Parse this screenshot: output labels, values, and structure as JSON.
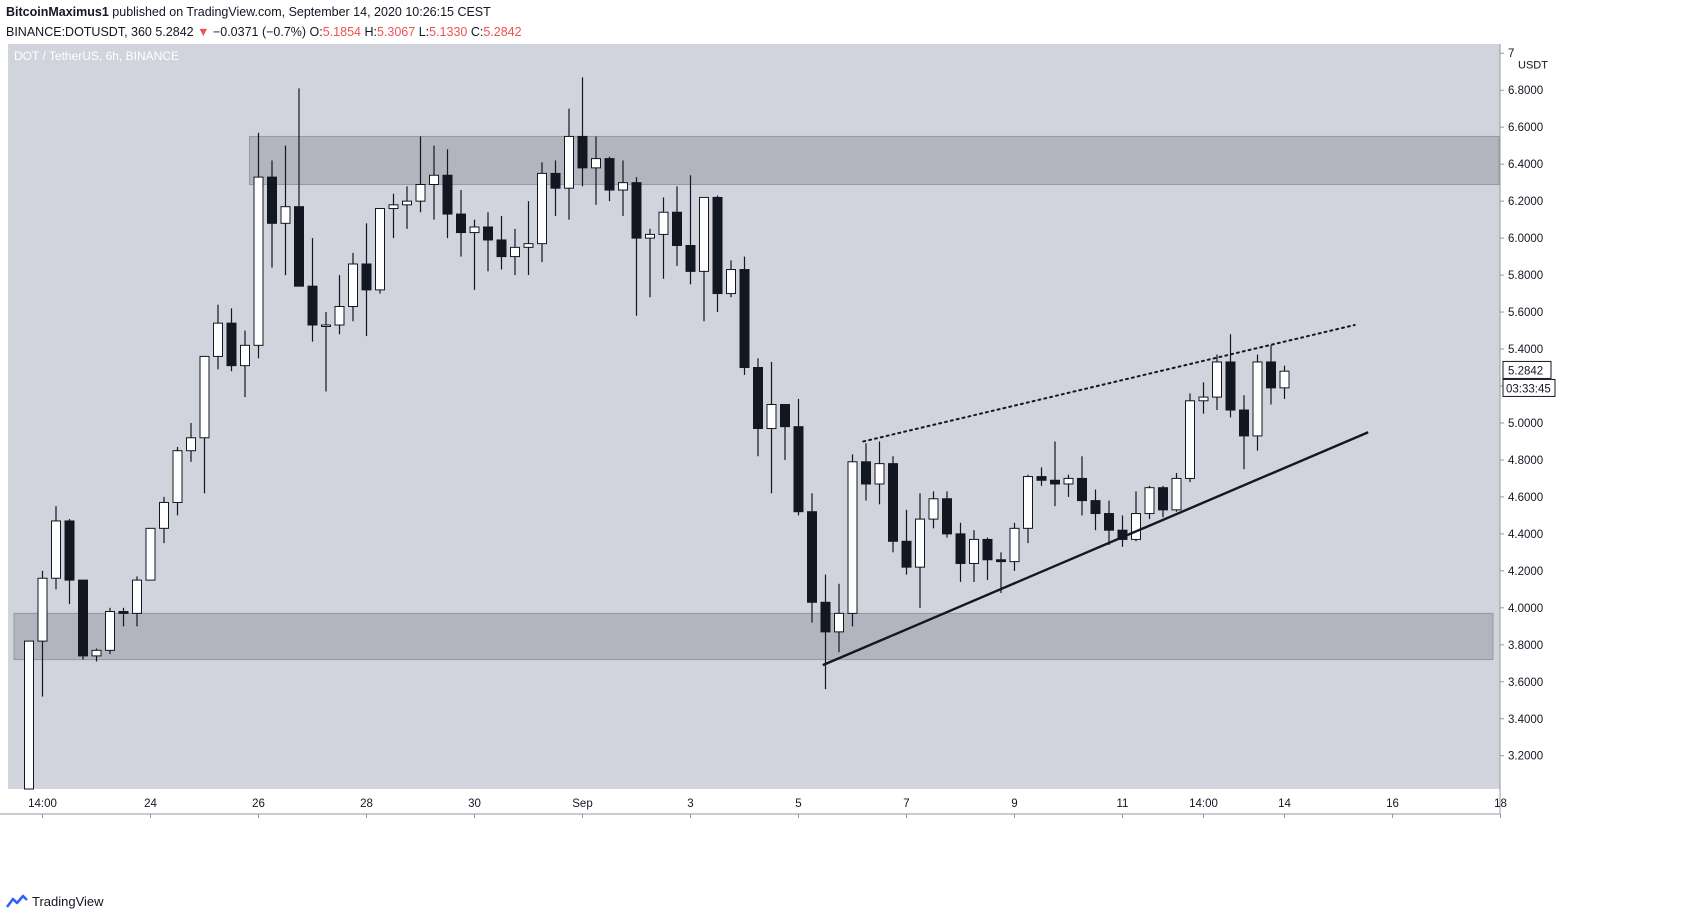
{
  "header": {
    "publisher": "BitcoinMaximus1",
    "published_text": "published on TradingView.com, September 14, 2020 10:26:15 CEST",
    "symbol": "BINANCE:DOTUSDT, 360",
    "last_price": "5.2842",
    "change_arrow": "▼",
    "change": "−0.0371 (−0.7%)",
    "o_label": "O:",
    "o_value": "5.1854",
    "h_label": "H:",
    "h_value": "5.3067",
    "l_label": "L:",
    "l_value": "5.1330",
    "c_label": "C:",
    "c_value": "5.2842"
  },
  "legend_title": "DOT / TetherUS, 6h, BINANCE",
  "footer": {
    "brand": "TradingView"
  },
  "colors": {
    "pane_bg": "#d1d4dc",
    "zone": "#b2b5be",
    "up_body": "#ffffff",
    "down_body": "#131722",
    "wick": "#131722",
    "neg": "#ef5350",
    "brand": "#2962ff"
  },
  "chart_data": {
    "type": "candlestick",
    "timeframe": "6h",
    "y_unit": "USDT",
    "ylim": [
      3.02,
      7.05
    ],
    "y_ticks": [
      "7",
      "6.8000",
      "6.6000",
      "6.4000",
      "6.2000",
      "6.0000",
      "5.8000",
      "5.6000",
      "5.4000",
      "5.2000",
      "5.0000",
      "4.8000",
      "4.6000",
      "4.4000",
      "4.2000",
      "4.0000",
      "3.8000",
      "3.6000",
      "3.4000",
      "3.2000"
    ],
    "x_ticks": [
      {
        "label": "14:00",
        "index": 1
      },
      {
        "label": "24",
        "index": 9
      },
      {
        "label": "26",
        "index": 17
      },
      {
        "label": "28",
        "index": 25
      },
      {
        "label": "30",
        "index": 33
      },
      {
        "label": "Sep",
        "index": 41
      },
      {
        "label": "3",
        "index": 49
      },
      {
        "label": "5",
        "index": 57
      },
      {
        "label": "7",
        "index": 65
      },
      {
        "label": "9",
        "index": 73
      },
      {
        "label": "11",
        "index": 81
      },
      {
        "label": "14:00",
        "index": 87
      },
      {
        "label": "14",
        "index": 93
      },
      {
        "label": "16",
        "index": 101
      },
      {
        "label": "18",
        "index": 109
      }
    ],
    "candles": [
      {
        "o": 3.02,
        "h": 3.82,
        "l": 3.02,
        "c": 3.82
      },
      {
        "o": 3.82,
        "h": 4.2,
        "l": 3.52,
        "c": 4.16
      },
      {
        "o": 4.16,
        "h": 4.55,
        "l": 4.1,
        "c": 4.47
      },
      {
        "o": 4.47,
        "h": 4.48,
        "l": 4.02,
        "c": 4.15
      },
      {
        "o": 4.15,
        "h": 4.15,
        "l": 3.72,
        "c": 3.74
      },
      {
        "o": 3.74,
        "h": 3.78,
        "l": 3.71,
        "c": 3.77
      },
      {
        "o": 3.77,
        "h": 4.0,
        "l": 3.75,
        "c": 3.98
      },
      {
        "o": 3.98,
        "h": 4.0,
        "l": 3.9,
        "c": 3.97
      },
      {
        "o": 3.97,
        "h": 4.17,
        "l": 3.9,
        "c": 4.15
      },
      {
        "o": 4.15,
        "h": 4.43,
        "l": 4.15,
        "c": 4.43
      },
      {
        "o": 4.43,
        "h": 4.6,
        "l": 4.35,
        "c": 4.57
      },
      {
        "o": 4.57,
        "h": 4.87,
        "l": 4.5,
        "c": 4.85
      },
      {
        "o": 4.85,
        "h": 5.0,
        "l": 4.79,
        "c": 4.92
      },
      {
        "o": 4.92,
        "h": 5.36,
        "l": 4.62,
        "c": 5.36
      },
      {
        "o": 5.36,
        "h": 5.64,
        "l": 5.29,
        "c": 5.54
      },
      {
        "o": 5.54,
        "h": 5.62,
        "l": 5.28,
        "c": 5.31
      },
      {
        "o": 5.31,
        "h": 5.5,
        "l": 5.14,
        "c": 5.42
      },
      {
        "o": 5.42,
        "h": 6.57,
        "l": 5.35,
        "c": 6.33
      },
      {
        "o": 6.33,
        "h": 6.42,
        "l": 5.84,
        "c": 6.08
      },
      {
        "o": 6.08,
        "h": 6.5,
        "l": 5.8,
        "c": 6.17
      },
      {
        "o": 6.17,
        "h": 6.81,
        "l": 5.74,
        "c": 5.74
      },
      {
        "o": 5.74,
        "h": 6.0,
        "l": 5.44,
        "c": 5.53
      },
      {
        "o": 5.53,
        "h": 5.6,
        "l": 5.17,
        "c": 5.53
      },
      {
        "o": 5.53,
        "h": 5.8,
        "l": 5.48,
        "c": 5.63
      },
      {
        "o": 5.63,
        "h": 5.92,
        "l": 5.55,
        "c": 5.86
      },
      {
        "o": 5.86,
        "h": 6.08,
        "l": 5.47,
        "c": 5.72
      },
      {
        "o": 5.72,
        "h": 6.16,
        "l": 5.7,
        "c": 6.16
      },
      {
        "o": 6.16,
        "h": 6.24,
        "l": 6.0,
        "c": 6.18
      },
      {
        "o": 6.18,
        "h": 6.28,
        "l": 6.05,
        "c": 6.2
      },
      {
        "o": 6.2,
        "h": 6.55,
        "l": 6.14,
        "c": 6.29
      },
      {
        "o": 6.29,
        "h": 6.5,
        "l": 6.1,
        "c": 6.34
      },
      {
        "o": 6.34,
        "h": 6.48,
        "l": 6.0,
        "c": 6.13
      },
      {
        "o": 6.13,
        "h": 6.26,
        "l": 5.9,
        "c": 6.03
      },
      {
        "o": 6.03,
        "h": 6.1,
        "l": 5.72,
        "c": 6.06
      },
      {
        "o": 6.06,
        "h": 6.14,
        "l": 5.82,
        "c": 5.99
      },
      {
        "o": 5.99,
        "h": 6.12,
        "l": 5.83,
        "c": 5.9
      },
      {
        "o": 5.9,
        "h": 6.05,
        "l": 5.8,
        "c": 5.95
      },
      {
        "o": 5.95,
        "h": 6.2,
        "l": 5.8,
        "c": 5.97
      },
      {
        "o": 5.97,
        "h": 6.41,
        "l": 5.87,
        "c": 6.35
      },
      {
        "o": 6.35,
        "h": 6.42,
        "l": 6.12,
        "c": 6.27
      },
      {
        "o": 6.27,
        "h": 6.7,
        "l": 6.1,
        "c": 6.55
      },
      {
        "o": 6.55,
        "h": 6.87,
        "l": 6.28,
        "c": 6.38
      },
      {
        "o": 6.38,
        "h": 6.55,
        "l": 6.18,
        "c": 6.43
      },
      {
        "o": 6.43,
        "h": 6.44,
        "l": 6.2,
        "c": 6.26
      },
      {
        "o": 6.26,
        "h": 6.42,
        "l": 6.12,
        "c": 6.3
      },
      {
        "o": 6.3,
        "h": 6.33,
        "l": 5.58,
        "c": 6.0
      },
      {
        "o": 6.0,
        "h": 6.05,
        "l": 5.68,
        "c": 6.02
      },
      {
        "o": 6.02,
        "h": 6.22,
        "l": 5.78,
        "c": 6.14
      },
      {
        "o": 6.14,
        "h": 6.28,
        "l": 5.85,
        "c": 5.96
      },
      {
        "o": 5.96,
        "h": 6.34,
        "l": 5.75,
        "c": 5.82
      },
      {
        "o": 5.82,
        "h": 6.22,
        "l": 5.55,
        "c": 6.22
      },
      {
        "o": 6.22,
        "h": 6.23,
        "l": 5.6,
        "c": 5.7
      },
      {
        "o": 5.7,
        "h": 5.88,
        "l": 5.68,
        "c": 5.83
      },
      {
        "o": 5.83,
        "h": 5.9,
        "l": 5.26,
        "c": 5.3
      },
      {
        "o": 5.3,
        "h": 5.35,
        "l": 4.82,
        "c": 4.97
      },
      {
        "o": 4.97,
        "h": 5.33,
        "l": 4.62,
        "c": 5.1
      },
      {
        "o": 5.1,
        "h": 5.1,
        "l": 4.8,
        "c": 4.98
      },
      {
        "o": 4.98,
        "h": 5.13,
        "l": 4.5,
        "c": 4.52
      },
      {
        "o": 4.52,
        "h": 4.62,
        "l": 3.92,
        "c": 4.03
      },
      {
        "o": 4.03,
        "h": 4.18,
        "l": 3.56,
        "c": 3.87
      },
      {
        "o": 3.87,
        "h": 4.13,
        "l": 3.76,
        "c": 3.97
      },
      {
        "o": 3.97,
        "h": 4.83,
        "l": 3.9,
        "c": 4.79
      },
      {
        "o": 4.79,
        "h": 4.89,
        "l": 4.58,
        "c": 4.67
      },
      {
        "o": 4.67,
        "h": 4.9,
        "l": 4.56,
        "c": 4.78
      },
      {
        "o": 4.78,
        "h": 4.82,
        "l": 4.3,
        "c": 4.36
      },
      {
        "o": 4.36,
        "h": 4.53,
        "l": 4.18,
        "c": 4.22
      },
      {
        "o": 4.22,
        "h": 4.62,
        "l": 4.0,
        "c": 4.48
      },
      {
        "o": 4.48,
        "h": 4.63,
        "l": 4.43,
        "c": 4.59
      },
      {
        "o": 4.59,
        "h": 4.63,
        "l": 4.38,
        "c": 4.4
      },
      {
        "o": 4.4,
        "h": 4.46,
        "l": 4.14,
        "c": 4.24
      },
      {
        "o": 4.24,
        "h": 4.42,
        "l": 4.14,
        "c": 4.37
      },
      {
        "o": 4.37,
        "h": 4.38,
        "l": 4.15,
        "c": 4.26
      },
      {
        "o": 4.26,
        "h": 4.3,
        "l": 4.08,
        "c": 4.25
      },
      {
        "o": 4.25,
        "h": 4.46,
        "l": 4.2,
        "c": 4.43
      },
      {
        "o": 4.43,
        "h": 4.72,
        "l": 4.35,
        "c": 4.71
      },
      {
        "o": 4.71,
        "h": 4.76,
        "l": 4.66,
        "c": 4.69
      },
      {
        "o": 4.69,
        "h": 4.9,
        "l": 4.55,
        "c": 4.67
      },
      {
        "o": 4.67,
        "h": 4.72,
        "l": 4.6,
        "c": 4.7
      },
      {
        "o": 4.7,
        "h": 4.82,
        "l": 4.5,
        "c": 4.58
      },
      {
        "o": 4.58,
        "h": 4.64,
        "l": 4.42,
        "c": 4.51
      },
      {
        "o": 4.51,
        "h": 4.58,
        "l": 4.34,
        "c": 4.42
      },
      {
        "o": 4.42,
        "h": 4.5,
        "l": 4.33,
        "c": 4.37
      },
      {
        "o": 4.37,
        "h": 4.63,
        "l": 4.36,
        "c": 4.51
      },
      {
        "o": 4.51,
        "h": 4.66,
        "l": 4.48,
        "c": 4.65
      },
      {
        "o": 4.65,
        "h": 4.66,
        "l": 4.49,
        "c": 4.53
      },
      {
        "o": 4.53,
        "h": 4.73,
        "l": 4.52,
        "c": 4.7
      },
      {
        "o": 4.7,
        "h": 5.16,
        "l": 4.68,
        "c": 5.12
      },
      {
        "o": 5.12,
        "h": 5.22,
        "l": 5.05,
        "c": 5.14
      },
      {
        "o": 5.14,
        "h": 5.37,
        "l": 5.07,
        "c": 5.33
      },
      {
        "o": 5.33,
        "h": 5.48,
        "l": 5.03,
        "c": 5.07
      },
      {
        "o": 5.07,
        "h": 5.15,
        "l": 4.75,
        "c": 4.93
      },
      {
        "o": 4.93,
        "h": 5.37,
        "l": 4.85,
        "c": 5.33
      },
      {
        "o": 5.33,
        "h": 5.42,
        "l": 5.1,
        "c": 5.19
      },
      {
        "o": 5.19,
        "h": 5.31,
        "l": 5.13,
        "c": 5.28
      }
    ],
    "zones": [
      {
        "from": 6.29,
        "to": 6.55,
        "start_index": 17,
        "end": "right"
      },
      {
        "from": 3.72,
        "to": 3.97,
        "start_index": 0,
        "end": "right"
      }
    ],
    "trendlines": [
      {
        "style": "solid",
        "p1": {
          "index": 58.8,
          "price": 3.69
        },
        "p2": {
          "index": 99.2,
          "price": 4.95
        }
      },
      {
        "style": "dotted",
        "p1": {
          "index": 61.8,
          "price": 4.9
        },
        "p2": {
          "index": 98.2,
          "price": 5.53
        }
      }
    ],
    "last_price_label": "5.2842",
    "countdown_label": "03:33:45"
  }
}
